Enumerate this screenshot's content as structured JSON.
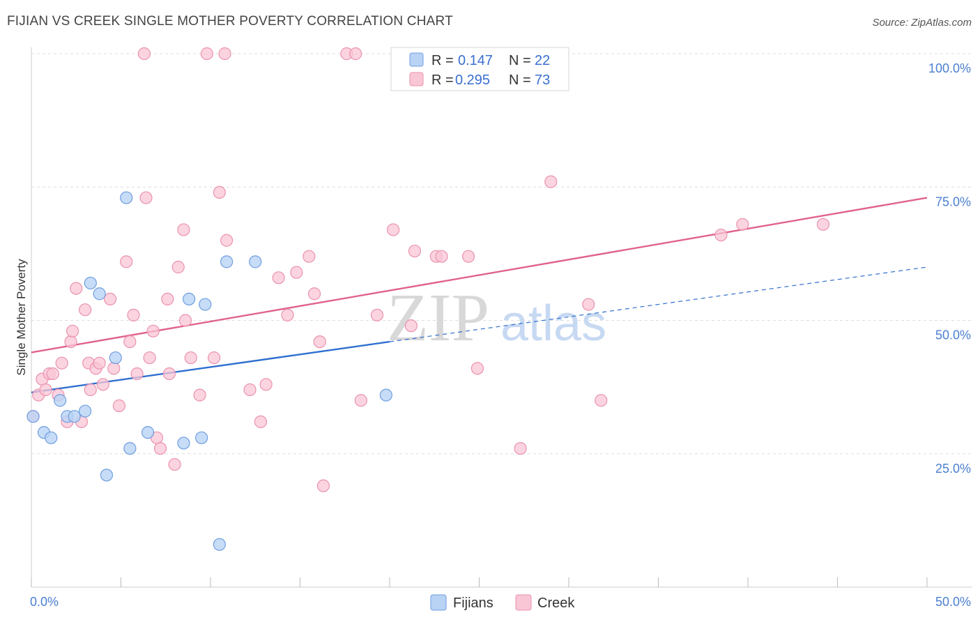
{
  "title": "FIJIAN VS CREEK SINGLE MOTHER POVERTY CORRELATION CHART",
  "source": "Source: ZipAtlas.com",
  "watermark": {
    "zip": "ZIP",
    "atlas": "atlas"
  },
  "legend": {
    "r_label": "R =",
    "n_label": "N =",
    "fijians": {
      "r": "0.147",
      "n": "22"
    },
    "creek": {
      "r": "0.295",
      "n": "73"
    }
  },
  "colors": {
    "fijians_fill": "#b9d3f5",
    "fijians_stroke": "#6f9ee0",
    "fijians_line": "#2f6fcf",
    "creek_fill": "#f9c6d5",
    "creek_stroke": "#ea92ae",
    "creek_line": "#e0628c",
    "grid": "#dddddd",
    "axis_label": "#4a7fd0"
  },
  "chart_data": {
    "type": "scatter",
    "title": "FIJIAN VS CREEK SINGLE MOTHER POVERTY CORRELATION CHART",
    "xlabel": "",
    "ylabel": "Single Mother Poverty",
    "xlim": [
      0,
      50
    ],
    "ylim": [
      0,
      100
    ],
    "x_tick_labels": {
      "min": "0.0%",
      "max": "50.0%"
    },
    "y_ticks": [
      {
        "value": 100,
        "label": "100.0%"
      },
      {
        "value": 75,
        "label": "75.0%"
      },
      {
        "value": 50,
        "label": "50.0%"
      },
      {
        "value": 25,
        "label": "25.0%"
      }
    ],
    "series": [
      {
        "name": "Fijians",
        "points": [
          [
            0.1,
            32
          ],
          [
            0.7,
            29
          ],
          [
            1.1,
            28
          ],
          [
            1.6,
            35
          ],
          [
            2.0,
            32
          ],
          [
            2.4,
            32
          ],
          [
            3.0,
            33
          ],
          [
            3.3,
            57
          ],
          [
            3.8,
            55
          ],
          [
            4.2,
            21
          ],
          [
            4.7,
            43
          ],
          [
            5.3,
            73
          ],
          [
            5.5,
            26
          ],
          [
            6.5,
            29
          ],
          [
            8.5,
            27
          ],
          [
            8.8,
            54
          ],
          [
            9.5,
            28
          ],
          [
            9.7,
            53
          ],
          [
            10.5,
            8
          ],
          [
            10.9,
            61
          ],
          [
            12.5,
            61
          ],
          [
            19.8,
            36
          ]
        ],
        "trend": {
          "x0": 0,
          "y0": 36.5,
          "x1": 20,
          "y1": 46,
          "dash_x1": 50,
          "dash_y1": 60
        }
      },
      {
        "name": "Creek",
        "points": [
          [
            0.1,
            32
          ],
          [
            0.4,
            36
          ],
          [
            0.6,
            39
          ],
          [
            0.8,
            37
          ],
          [
            1.0,
            40
          ],
          [
            1.2,
            40
          ],
          [
            1.5,
            36
          ],
          [
            1.7,
            42
          ],
          [
            2.0,
            31
          ],
          [
            2.2,
            46
          ],
          [
            2.3,
            48
          ],
          [
            2.5,
            56
          ],
          [
            2.8,
            31
          ],
          [
            3.0,
            52
          ],
          [
            3.2,
            42
          ],
          [
            3.3,
            37
          ],
          [
            3.6,
            41
          ],
          [
            3.8,
            42
          ],
          [
            4.0,
            38
          ],
          [
            4.4,
            54
          ],
          [
            4.6,
            41
          ],
          [
            4.9,
            34
          ],
          [
            5.3,
            61
          ],
          [
            5.5,
            46
          ],
          [
            5.7,
            51
          ],
          [
            5.9,
            40
          ],
          [
            6.3,
            100
          ],
          [
            6.4,
            73
          ],
          [
            6.6,
            43
          ],
          [
            6.8,
            48
          ],
          [
            7.0,
            28
          ],
          [
            7.2,
            26
          ],
          [
            7.6,
            54
          ],
          [
            7.7,
            40
          ],
          [
            8.0,
            23
          ],
          [
            8.2,
            60
          ],
          [
            8.5,
            67
          ],
          [
            8.6,
            50
          ],
          [
            8.9,
            43
          ],
          [
            9.4,
            36
          ],
          [
            9.8,
            100
          ],
          [
            10.2,
            43
          ],
          [
            10.5,
            74
          ],
          [
            10.8,
            100
          ],
          [
            10.9,
            65
          ],
          [
            12.2,
            37
          ],
          [
            12.8,
            31
          ],
          [
            13.1,
            38
          ],
          [
            13.8,
            58
          ],
          [
            14.3,
            51
          ],
          [
            14.8,
            59
          ],
          [
            15.5,
            62
          ],
          [
            15.8,
            55
          ],
          [
            16.1,
            46
          ],
          [
            16.3,
            19
          ],
          [
            17.6,
            100
          ],
          [
            18.1,
            100
          ],
          [
            18.4,
            35
          ],
          [
            19.3,
            51
          ],
          [
            20.2,
            67
          ],
          [
            21.2,
            49
          ],
          [
            21.4,
            63
          ],
          [
            22.6,
            62
          ],
          [
            22.9,
            62
          ],
          [
            24.4,
            62
          ],
          [
            24.9,
            41
          ],
          [
            27.3,
            26
          ],
          [
            29.0,
            76
          ],
          [
            31.1,
            53
          ],
          [
            31.8,
            35
          ],
          [
            38.5,
            66
          ],
          [
            39.7,
            68
          ],
          [
            44.2,
            68
          ]
        ],
        "trend": {
          "x0": 0,
          "y0": 44,
          "x1": 50,
          "y1": 73
        }
      }
    ]
  },
  "bottom_legend": {
    "fijians": "Fijians",
    "creek": "Creek"
  }
}
